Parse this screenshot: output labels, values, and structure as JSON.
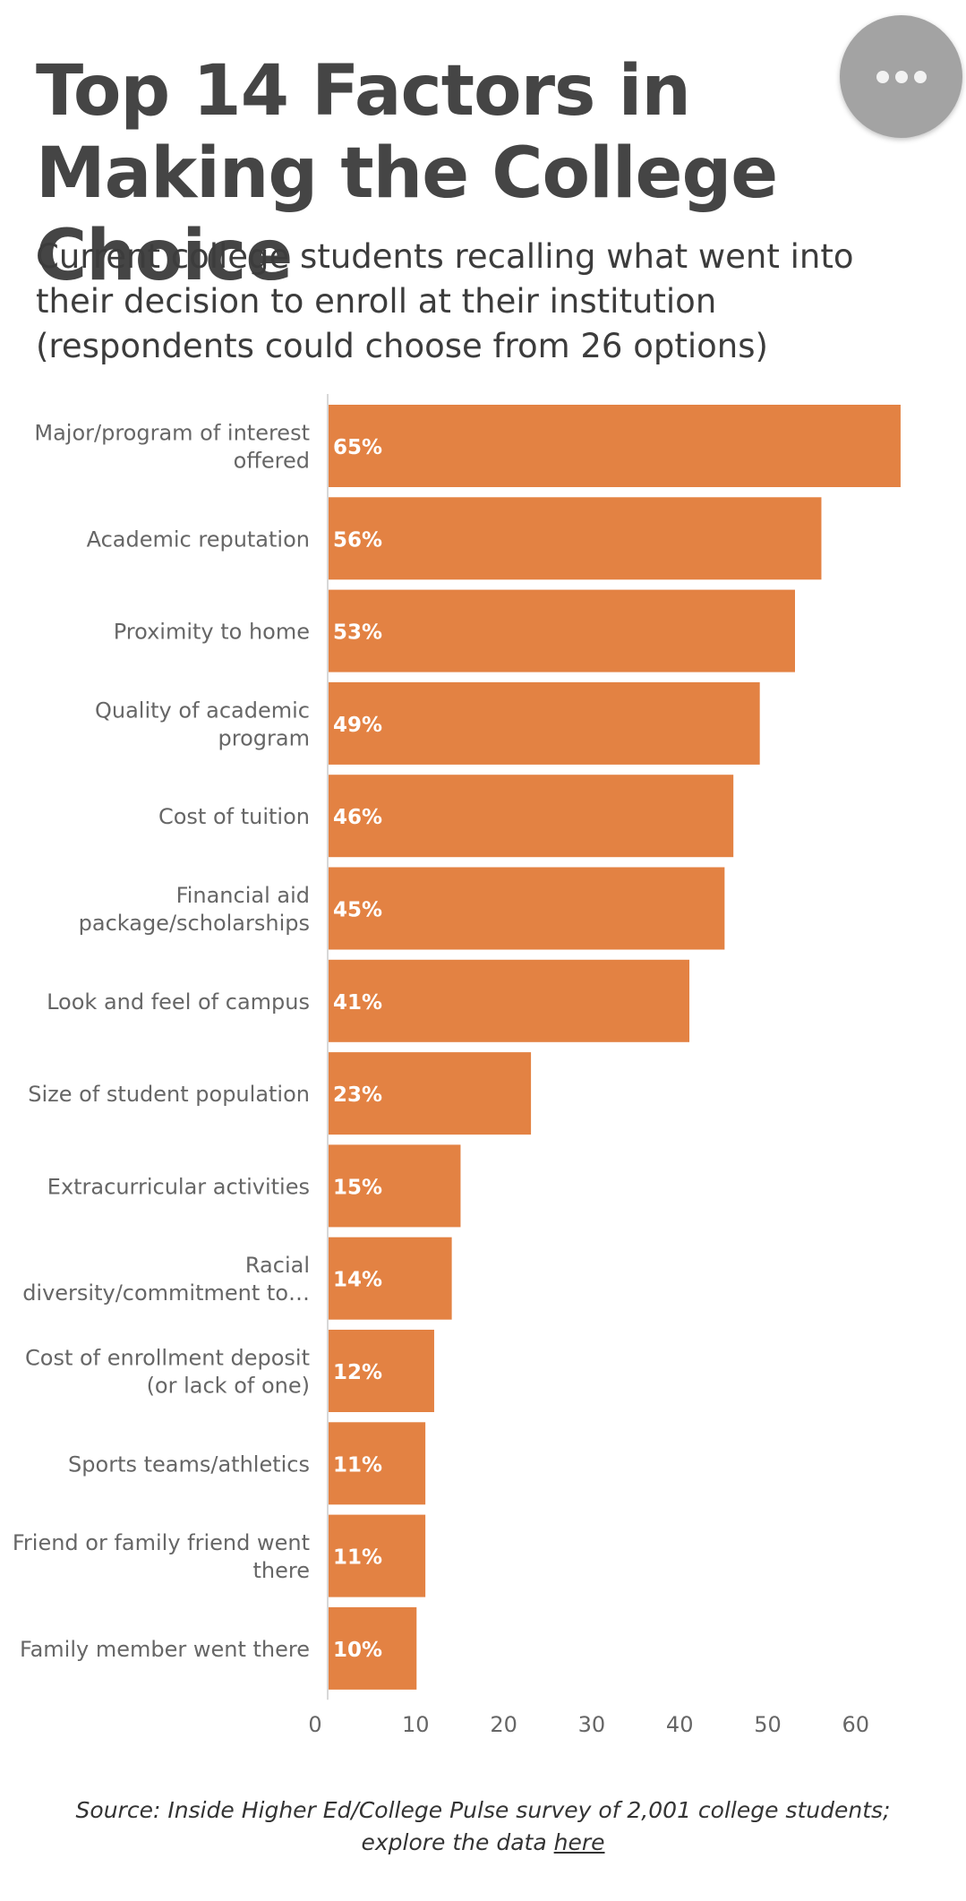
{
  "header": {
    "title": "Top 14 Factors in Making the College Choice",
    "subtitle": "Current college students recalling what went into their decision to enroll at their institution (respondents could choose from 26 options)"
  },
  "menu": {
    "icon": "more-horizontal-icon",
    "color": "#a3a3a3"
  },
  "chart_data": {
    "type": "bar",
    "orientation": "horizontal",
    "categories": [
      "Major/program of interest offered",
      "Academic reputation",
      "Proximity to home",
      "Quality of academic program",
      "Cost of tuition",
      "Financial aid package/scholarships",
      "Look and feel of campus",
      "Size of student population",
      "Extracurricular activities",
      "Racial diversity/commitment to…",
      "Cost of enrollment deposit (or lack of one)",
      "Sports teams/athletics",
      "Friend or family friend went there",
      "Family member went there"
    ],
    "category_lines": [
      [
        "Major/program of interest",
        "offered"
      ],
      [
        "Academic reputation"
      ],
      [
        "Proximity to home"
      ],
      [
        "Quality of academic",
        "program"
      ],
      [
        "Cost of tuition"
      ],
      [
        "Financial aid",
        "package/scholarships"
      ],
      [
        "Look and feel of campus"
      ],
      [
        "Size of student population"
      ],
      [
        "Extracurricular activities"
      ],
      [
        "Racial",
        "diversity/commitment to…"
      ],
      [
        "Cost of enrollment deposit",
        "(or lack of one)"
      ],
      [
        "Sports teams/athletics"
      ],
      [
        "Friend or family friend went",
        "there"
      ],
      [
        "Family member went there"
      ]
    ],
    "values": [
      65,
      56,
      53,
      49,
      46,
      45,
      41,
      23,
      15,
      14,
      12,
      11,
      11,
      10
    ],
    "value_labels": [
      "65%",
      "56%",
      "53%",
      "49%",
      "46%",
      "45%",
      "41%",
      "23%",
      "15%",
      "14%",
      "12%",
      "11%",
      "11%",
      "10%"
    ],
    "x_ticks": [
      "0",
      "10",
      "20",
      "30",
      "40",
      "50",
      "60"
    ],
    "xlim": [
      0,
      65
    ],
    "bar_color": "#e38243",
    "axis_color": "#d8d8d8",
    "grid": false,
    "legend": "none"
  },
  "footer": {
    "source_text": "Source: Inside Higher Ed/College Pulse survey of 2,001 college students;",
    "explore_text": "explore the data ",
    "link_text": "here"
  }
}
